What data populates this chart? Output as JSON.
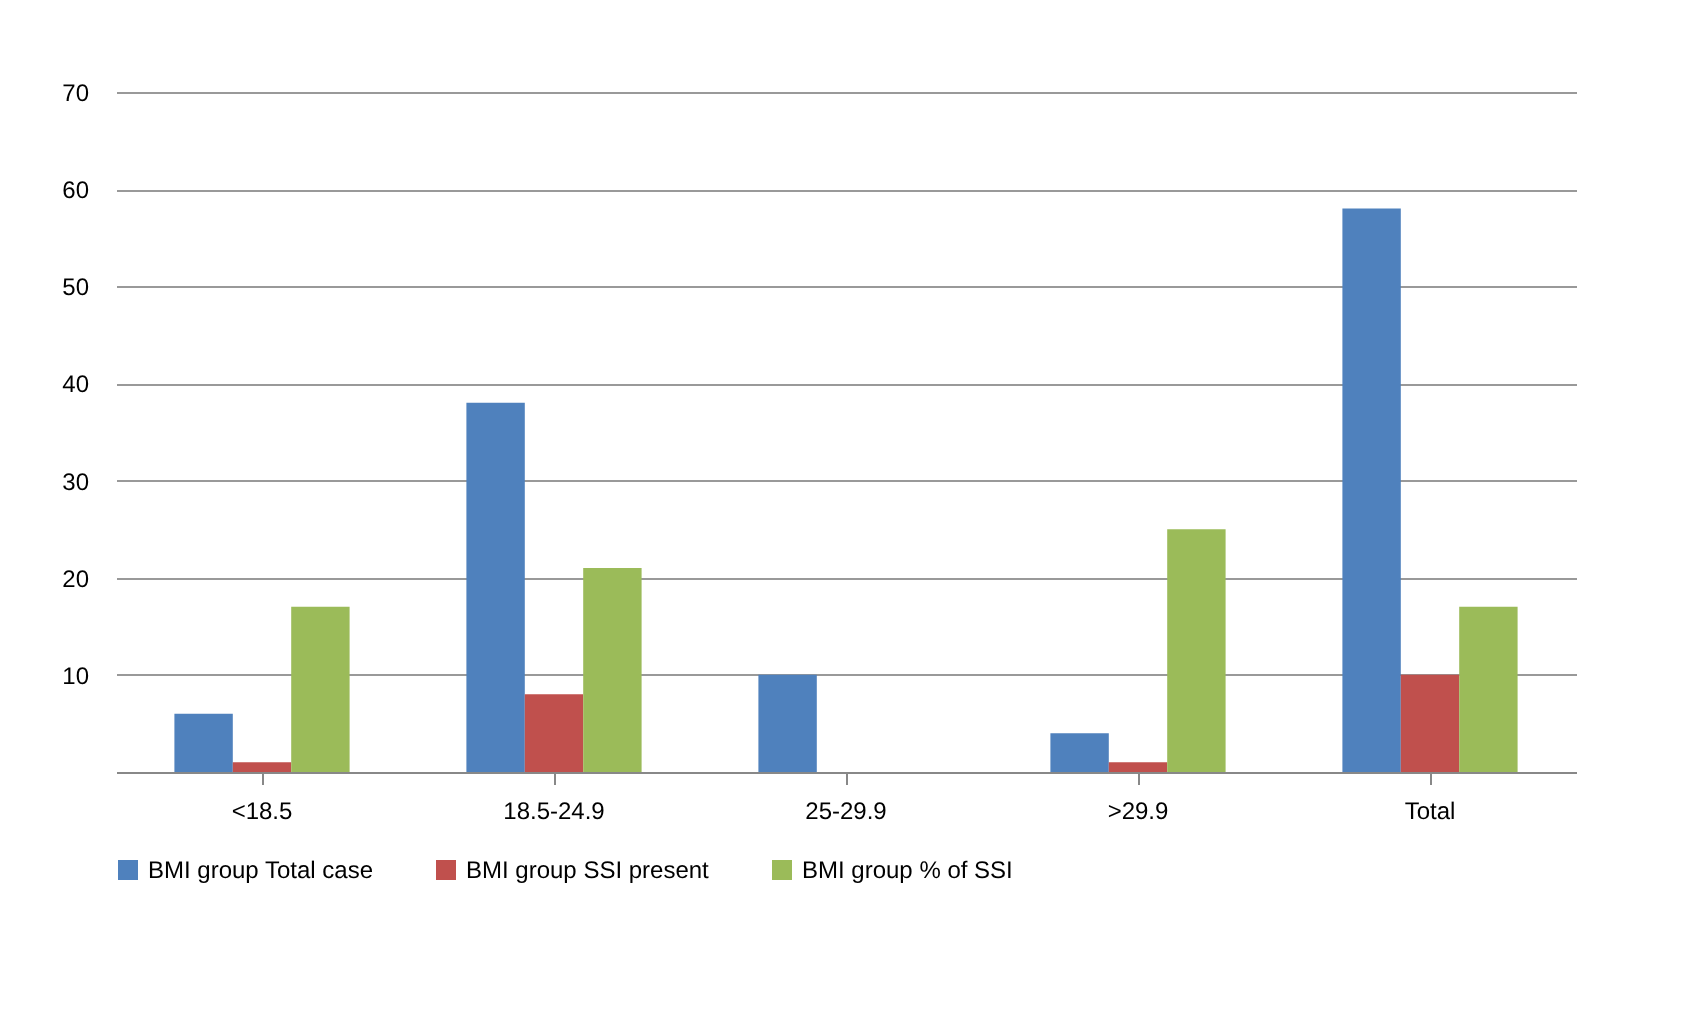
{
  "chart_data": {
    "type": "bar",
    "categories": [
      "<18.5",
      "18.5-24.9",
      "25-29.9",
      ">29.9",
      "Total"
    ],
    "series": [
      {
        "name": "BMI group Total case",
        "color": "#4f81bd",
        "values": [
          6,
          38,
          10,
          4,
          58
        ]
      },
      {
        "name": "BMI group SSI present",
        "color": "#c0504d",
        "values": [
          1,
          8,
          0,
          1,
          10
        ]
      },
      {
        "name": "BMI group % of SSI",
        "color": "#9bbb59",
        "values": [
          17,
          21,
          0,
          25,
          17
        ]
      }
    ],
    "ylim": [
      0,
      70
    ],
    "yticks": [
      {
        "value": 0,
        "label": null
      },
      10,
      20,
      30,
      40,
      50,
      60,
      70
    ],
    "grid": "y",
    "legend": "bottom"
  }
}
